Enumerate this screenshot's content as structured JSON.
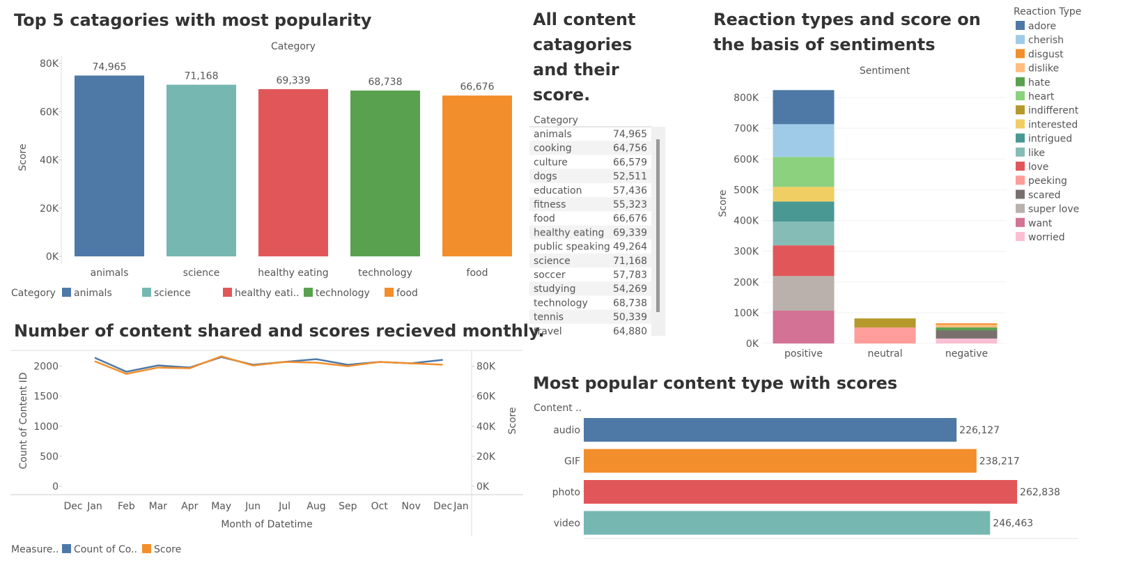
{
  "chart_data": [
    {
      "type": "bar",
      "title": "Top 5 catagories with most popularity",
      "x_label": "Category",
      "y_label": "Score",
      "categories": [
        "animals",
        "science",
        "healthy eating",
        "technology",
        "food"
      ],
      "values": [
        74965,
        71168,
        69339,
        68738,
        66676
      ],
      "value_labels": [
        "74,965",
        "71,168",
        "69,339",
        "68,738",
        "66,676"
      ],
      "colors": [
        "#4E79A7",
        "#76B7B2",
        "#E15759",
        "#59A14F",
        "#F28E2B"
      ],
      "ylim": [
        0,
        80000
      ],
      "yticks": [
        {
          "value": 0,
          "label": "0K"
        },
        {
          "value": 20000,
          "label": "20K"
        },
        {
          "value": 40000,
          "label": "40K"
        },
        {
          "value": 60000,
          "label": "60K"
        },
        {
          "value": 80000,
          "label": "80K"
        }
      ],
      "legend": {
        "title": "Category",
        "items": [
          "animals",
          "science",
          "healthy eati..",
          "technology",
          "food"
        ]
      }
    },
    {
      "type": "table",
      "title": "All content catagories and their score.",
      "header": "Category",
      "rows": [
        [
          "animals",
          "74,965"
        ],
        [
          "cooking",
          "64,756"
        ],
        [
          "culture",
          "66,579"
        ],
        [
          "dogs",
          "52,511"
        ],
        [
          "education",
          "57,436"
        ],
        [
          "fitness",
          "55,323"
        ],
        [
          "food",
          "66,676"
        ],
        [
          "healthy eating",
          "69,339"
        ],
        [
          "public speaking",
          "49,264"
        ],
        [
          "science",
          "71,168"
        ],
        [
          "soccer",
          "57,783"
        ],
        [
          "studying",
          "54,269"
        ],
        [
          "technology",
          "68,738"
        ],
        [
          "tennis",
          "50,339"
        ],
        [
          "travel",
          "64,880"
        ]
      ]
    },
    {
      "type": "line",
      "title": "Number of content shared and scores recieved monthly.",
      "x_label": "Month of Datetime",
      "y_label": "Count of Content ID",
      "y2_label": "Score",
      "categories": [
        "Dec",
        "Jan",
        "Feb",
        "Mar",
        "Apr",
        "May",
        "Jun",
        "Jul",
        "Aug",
        "Sep",
        "Oct",
        "Nov",
        "Dec",
        "Jan"
      ],
      "series": [
        {
          "name": "Count of Co..",
          "color": "#4E79A7",
          "values": [
            null,
            2140,
            1907,
            2012,
            1977,
            2151,
            2023,
            2070,
            2116,
            2023,
            2070,
            2047,
            2105,
            null
          ]
        },
        {
          "name": "Score",
          "color": "#F28E2B",
          "axis": "y2",
          "values": [
            null,
            83275,
            74854,
            79064,
            78596,
            86550,
            80468,
            82807,
            82339,
            80000,
            82807,
            81871,
            80936,
            null
          ]
        }
      ],
      "ylim": [
        0,
        2250
      ],
      "yticks": [
        0,
        500,
        1000,
        1500,
        2000
      ],
      "y2lim": [
        0,
        90000
      ],
      "y2ticks": [
        {
          "value": 0,
          "label": "0K"
        },
        {
          "value": 20000,
          "label": "20K"
        },
        {
          "value": 40000,
          "label": "40K"
        },
        {
          "value": 60000,
          "label": "60K"
        },
        {
          "value": 80000,
          "label": "80K"
        }
      ],
      "legend_title": "Measure.."
    },
    {
      "type": "stacked_bar",
      "title": "Reaction types and score on the basis of sentiments",
      "x_label": "Sentiment",
      "y_label": "Score",
      "categories": [
        "positive",
        "neutral",
        "negative"
      ],
      "legend_title": "Reaction Type",
      "series": [
        {
          "name": "adore",
          "color": "#4E79A7",
          "values": [
            111000,
            null,
            null
          ]
        },
        {
          "name": "cherish",
          "color": "#A0CBE8",
          "values": [
            106500,
            null,
            null
          ]
        },
        {
          "name": "disgust",
          "color": "#F28E2B",
          "values": [
            null,
            null,
            4500
          ]
        },
        {
          "name": "dislike",
          "color": "#FFBE7D",
          "values": [
            null,
            null,
            9000
          ]
        },
        {
          "name": "hate",
          "color": "#59A14F",
          "values": [
            null,
            null,
            9000
          ]
        },
        {
          "name": "heart",
          "color": "#8CD17D",
          "values": [
            97400,
            null,
            null
          ]
        },
        {
          "name": "indifferent",
          "color": "#B6992D",
          "values": [
            null,
            29500,
            null
          ]
        },
        {
          "name": "interested",
          "color": "#F1CE63",
          "values": [
            47600,
            null,
            null
          ]
        },
        {
          "name": "intrigued",
          "color": "#499894",
          "values": [
            65700,
            null,
            null
          ]
        },
        {
          "name": "like",
          "color": "#86BCB6",
          "values": [
            77000,
            null,
            null
          ]
        },
        {
          "name": "love",
          "color": "#E15759",
          "values": [
            99700,
            null,
            null
          ]
        },
        {
          "name": "peeking",
          "color": "#FF9D9A",
          "values": [
            null,
            52000,
            null
          ]
        },
        {
          "name": "scared",
          "color": "#79706E",
          "values": [
            null,
            null,
            27000
          ]
        },
        {
          "name": "super love",
          "color": "#BAB0AC",
          "values": [
            113000,
            null,
            null
          ]
        },
        {
          "name": "want",
          "color": "#D37295",
          "values": [
            106500,
            null,
            null
          ]
        },
        {
          "name": "worried",
          "color": "#FABFD2",
          "values": [
            null,
            null,
            16000
          ]
        }
      ],
      "ylim": [
        0,
        850000
      ],
      "yticks": [
        {
          "value": 0,
          "label": "0K"
        },
        {
          "value": 100000,
          "label": "100K"
        },
        {
          "value": 200000,
          "label": "200K"
        },
        {
          "value": 300000,
          "label": "300K"
        },
        {
          "value": 400000,
          "label": "400K"
        },
        {
          "value": 500000,
          "label": "500K"
        },
        {
          "value": 600000,
          "label": "600K"
        },
        {
          "value": 700000,
          "label": "700K"
        },
        {
          "value": 800000,
          "label": "800K"
        }
      ]
    },
    {
      "type": "hbar",
      "title": "Most popular content type with scores",
      "y_label": "Content ..",
      "categories": [
        "audio",
        "GIF",
        "photo",
        "video"
      ],
      "values": [
        226127,
        238217,
        262838,
        246463
      ],
      "value_labels": [
        "226,127",
        "238,217",
        "262,838",
        "246,463"
      ],
      "colors": [
        "#4E79A7",
        "#F28E2B",
        "#E15759",
        "#76B7B2"
      ],
      "xlim": [
        0,
        300000
      ]
    }
  ]
}
